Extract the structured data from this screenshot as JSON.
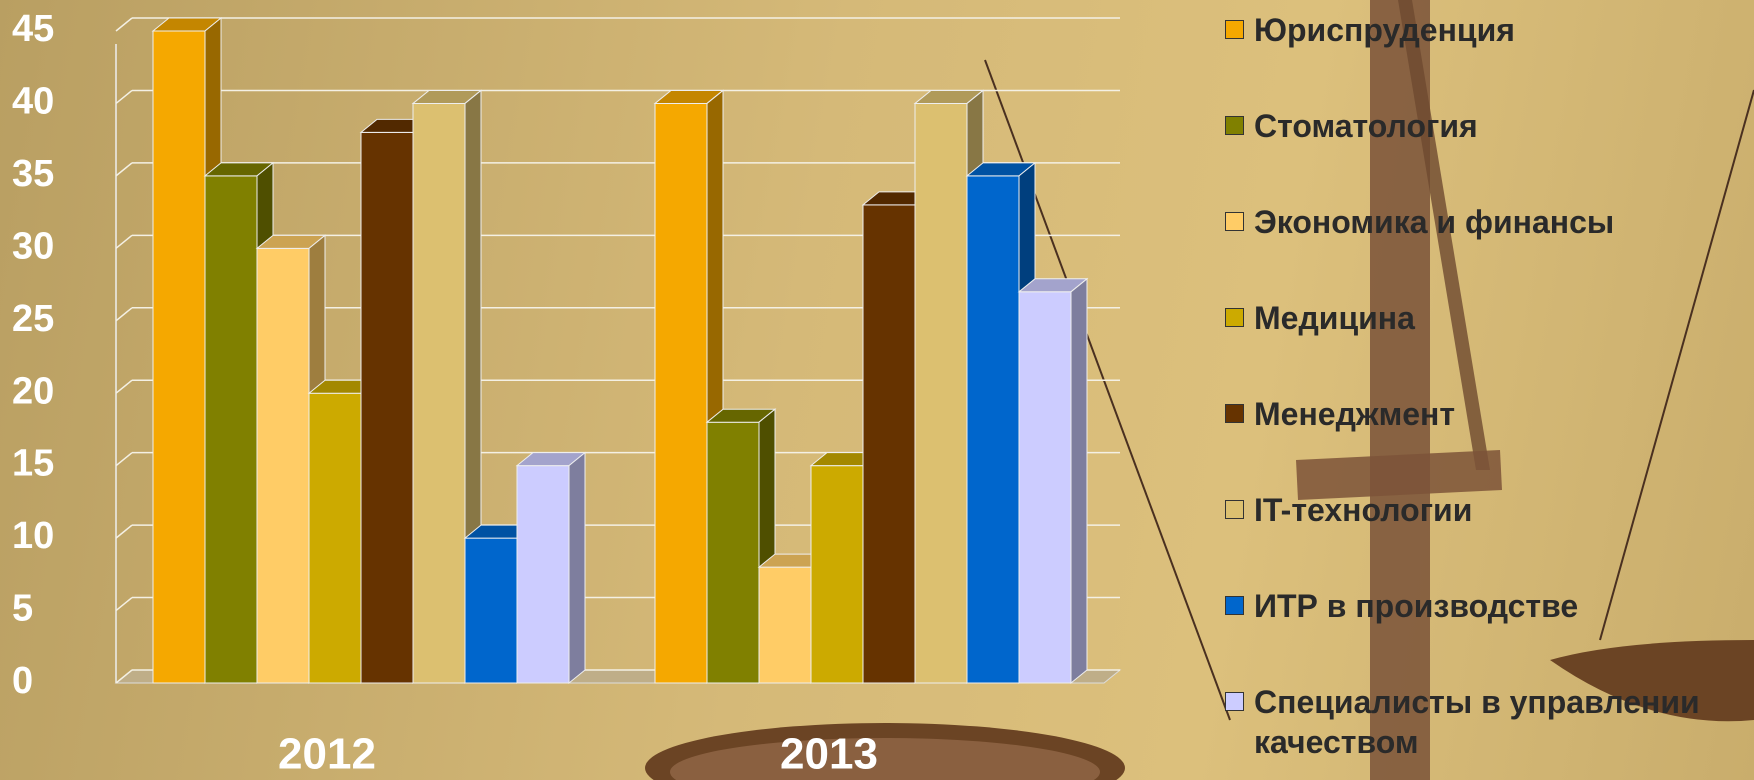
{
  "chart_data": {
    "type": "bar3d",
    "categories": [
      "2012",
      "2013"
    ],
    "series": [
      {
        "name": "Юриспруденция",
        "color": "#f5a800",
        "values": [
          45,
          40
        ]
      },
      {
        "name": "Стоматология",
        "color": "#808000",
        "values": [
          35,
          18
        ]
      },
      {
        "name": "Экономика и финансы",
        "color": "#ffcc66",
        "values": [
          30,
          8
        ]
      },
      {
        "name": "Медицина",
        "color": "#ccaa00",
        "values": [
          20,
          15
        ]
      },
      {
        "name": "Менеджмент",
        "color": "#663300",
        "values": [
          38,
          33
        ]
      },
      {
        "name": "IT-технологии",
        "color": "#dcc070",
        "values": [
          40,
          40
        ]
      },
      {
        "name": "ИТР в производстве",
        "color": "#0066cc",
        "values": [
          10,
          35
        ]
      },
      {
        "name": "Специалисты в управлении качеством",
        "color": "#ccccff",
        "values": [
          15,
          27
        ]
      }
    ],
    "ylim": [
      0,
      45
    ],
    "yticks": [
      0,
      5,
      10,
      15,
      20,
      25,
      30,
      35,
      40,
      45
    ],
    "grid": true
  }
}
